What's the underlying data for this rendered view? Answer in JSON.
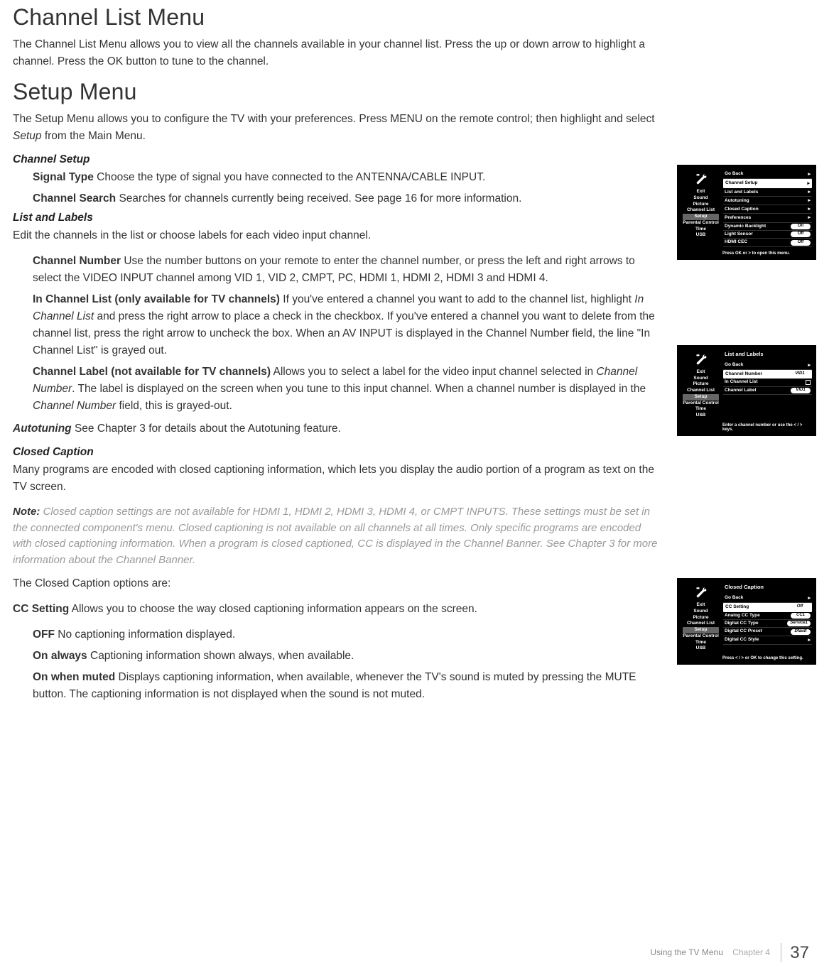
{
  "headings": {
    "channel_list_menu": "Channel List Menu",
    "setup_menu": "Setup Menu",
    "channel_setup": "Channel Setup",
    "list_and_labels": "List and Labels",
    "autotuning": "Autotuning",
    "closed_caption": "Closed Caption"
  },
  "paragraphs": {
    "channel_list_intro": "The Channel List Menu allows you to view all the channels available in your channel list. Press the up or down arrow to highlight a channel. Press the OK button to tune to the channel.",
    "setup_intro_a": "The Setup Menu allows you to configure the TV with your preferences. Press MENU on the remote control; then highlight and select ",
    "setup_intro_b": " from the Main Menu.",
    "setup_word": "Setup",
    "signal_type_lead": "Signal Type",
    "signal_type": "  Choose the type of signal you have connected to the ANTENNA/CABLE INPUT.",
    "channel_search_lead": "Channel Search",
    "channel_search": "  Searches for channels currently being received. See page 16 for more information.",
    "list_labels_intro": "Edit the channels in the list or choose labels for each video input channel.",
    "channel_number_lead": "Channel Number",
    "channel_number": "  Use the number buttons on your remote to enter the channel number, or press the left and right arrows to select the VIDEO INPUT channel among VID 1, VID 2, CMPT, PC, HDMI 1, HDMI 2, HDMI 3 and HDMI 4.",
    "in_channel_list_lead": "In Channel List (only available for TV channels)",
    "in_channel_list_a": "  If you've entered a channel you want to add to the channel list, highlight ",
    "in_channel_list_b": " and press the right arrow to place a check in the checkbox. If you've entered a channel you want to delete from the channel list, press the right arrow to uncheck the box. When an AV INPUT is displayed in the Channel Number field, the line \"In Channel List\" is grayed out.",
    "in_channel_list_italic": "In Channel List",
    "channel_label_lead": "Channel Label (not available for TV channels)",
    "channel_label_a": "  Allows you to select a label for the video input channel selected in ",
    "channel_label_b": ". The label is displayed on the screen when you tune to this input channel. When a channel number is displayed in the ",
    "channel_label_c": " field, this is grayed-out.",
    "channel_number_italic": "Channel Number",
    "autotuning_text": "  See Chapter 3 for details about the Autotuning feature.",
    "cc_intro": "Many programs are encoded with closed captioning information, which lets you display the audio portion of a program as text on the TV screen.",
    "note_label": "Note: ",
    "note_text": "Closed caption settings are not available for HDMI 1, HDMI 2, HDMI 3, HDMI 4, or CMPT INPUTS. These settings must be set in the connected component's menu. Closed captioning is not available on all channels at all times. Only specific programs are encoded with closed captioning information. When a program is closed captioned, CC is displayed in the Channel Banner. See Chapter 3 for more information about the Channel Banner.",
    "cc_options_are": "The Closed Caption options are:",
    "cc_setting_lead": "CC Setting",
    "cc_setting_text": " Allows you to choose the way closed captioning information appears on the screen.",
    "off_lead": "OFF",
    "off_text": "  No captioning information displayed.",
    "on_always_lead": "On always",
    "on_always_text": "  Captioning information shown always, when available.",
    "on_muted_lead": "On when muted",
    "on_muted_text": "  Displays captioning information, when available, whenever the TV's sound is muted by pressing the MUTE button. The captioning information is not displayed when the sound is not muted."
  },
  "footer": {
    "using": "Using the TV Menu",
    "chapter": "Chapter 4",
    "page": "37"
  },
  "osd_sidebar": [
    "Exit",
    "Sound",
    "Picture",
    "Channel List",
    "Setup",
    "Parental Control",
    "Time",
    "USB"
  ],
  "osd1": {
    "items": [
      {
        "label": "Go Back",
        "value": "▸"
      },
      {
        "label": "Channel Setup",
        "value": "▸",
        "sel": true
      },
      {
        "label": "List and Labels",
        "value": "▸"
      },
      {
        "label": "Autotuning",
        "value": "▸"
      },
      {
        "label": "Closed Caption",
        "value": "▸"
      },
      {
        "label": "Preferences",
        "value": "▸"
      },
      {
        "label": "Dynamic Backlight",
        "badge": "On"
      },
      {
        "label": "Light Sensor",
        "badge": "Off"
      },
      {
        "label": "HDMI CEC",
        "badge": "Off"
      }
    ],
    "hint": "Press OK or > to open this menu."
  },
  "osd2": {
    "title": "List and Labels",
    "items": [
      {
        "label": "Go Back",
        "value": "▸"
      },
      {
        "label": "Channel Number",
        "badge": "VID1",
        "sel": true
      },
      {
        "label": "In Channel List",
        "checkbox": true
      },
      {
        "label": "Channel Label",
        "badge": "VID1"
      }
    ],
    "hint": "Enter a channel number or use the < / > keys."
  },
  "osd3": {
    "title": "Closed Caption",
    "items": [
      {
        "label": "Go Back",
        "value": "▸"
      },
      {
        "label": "CC Setting",
        "badge": "Off",
        "sel": true
      },
      {
        "label": "Analog CC Type",
        "badge": "CC1"
      },
      {
        "label": "Digital CC Type",
        "badge": "Service1"
      },
      {
        "label": "Digital CC Preset",
        "badge": "Dfault"
      },
      {
        "label": "Digital CC Style",
        "value": "▸"
      }
    ],
    "hint": "Press < / >  or OK to change this setting."
  }
}
